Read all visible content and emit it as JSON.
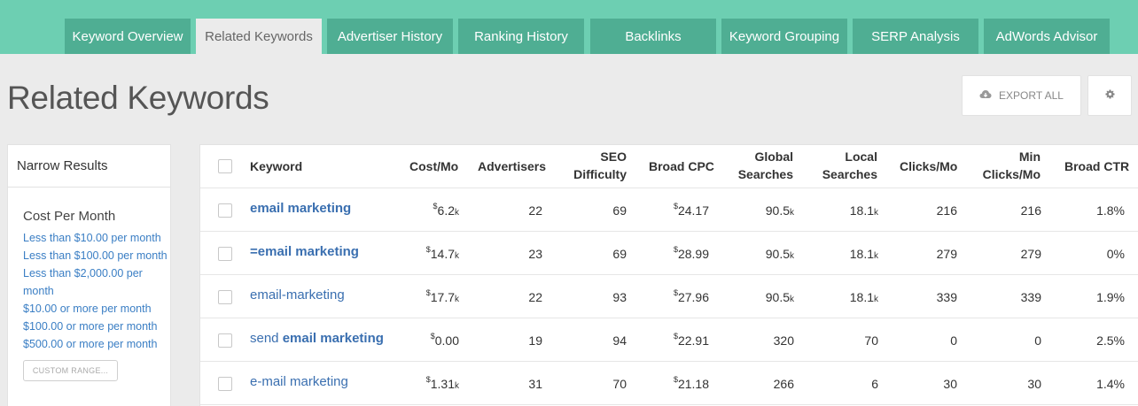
{
  "nav": {
    "tabs": [
      {
        "label": "Keyword Overview",
        "active": false
      },
      {
        "label": "Related Keywords",
        "active": true
      },
      {
        "label": "Advertiser History",
        "active": false
      },
      {
        "label": "Ranking History",
        "active": false
      },
      {
        "label": "Backlinks",
        "active": false
      },
      {
        "label": "Keyword Grouping",
        "active": false
      },
      {
        "label": "SERP Analysis",
        "active": false
      },
      {
        "label": "AdWords Advisor",
        "active": false
      }
    ]
  },
  "page": {
    "title": "Related Keywords",
    "export_label": "EXPORT ALL"
  },
  "sidebar": {
    "heading": "Narrow Results",
    "filter_title": "Cost Per Month",
    "filters": [
      "Less than $10.00 per month",
      "Less than $100.00 per month",
      "Less than $2,000.00 per month",
      "$10.00 or more per month",
      "$100.00 or more per month",
      "$500.00 or more per month"
    ],
    "custom_range_label": "CUSTOM RANGE..."
  },
  "table": {
    "headers": {
      "keyword": "Keyword",
      "cost_mo": "Cost/Mo",
      "advertisers": "Advertisers",
      "seo_1": "SEO",
      "seo_2": "Difficulty",
      "broad_cpc": "Broad CPC",
      "global_1": "Global",
      "global_2": "Searches",
      "local_1": "Local",
      "local_2": "Searches",
      "clicks_mo": "Clicks/Mo",
      "min_1": "Min",
      "min_2": "Clicks/Mo",
      "broad_ctr": "Broad CTR"
    },
    "rows": [
      {
        "pre": "",
        "bold": "email marketing",
        "post": "",
        "cost_cur": "$",
        "cost": "6.2",
        "cost_unit": "k",
        "advertisers": "22",
        "seo": "69",
        "cpc_cur": "$",
        "cpc": "24.17",
        "global": "90.5",
        "global_unit": "k",
        "local": "18.1",
        "local_unit": "k",
        "clicks": "216",
        "min_clicks": "216",
        "ctr": "1.8%"
      },
      {
        "pre": "",
        "bold": "=email marketing",
        "post": "",
        "cost_cur": "$",
        "cost": "14.7",
        "cost_unit": "k",
        "advertisers": "23",
        "seo": "69",
        "cpc_cur": "$",
        "cpc": "28.99",
        "global": "90.5",
        "global_unit": "k",
        "local": "18.1",
        "local_unit": "k",
        "clicks": "279",
        "min_clicks": "279",
        "ctr": "0%"
      },
      {
        "pre": "email-marketing",
        "bold": "",
        "post": "",
        "cost_cur": "$",
        "cost": "17.7",
        "cost_unit": "k",
        "advertisers": "22",
        "seo": "93",
        "cpc_cur": "$",
        "cpc": "27.96",
        "global": "90.5",
        "global_unit": "k",
        "local": "18.1",
        "local_unit": "k",
        "clicks": "339",
        "min_clicks": "339",
        "ctr": "1.9%"
      },
      {
        "pre": "send ",
        "bold": "email marketing",
        "post": "",
        "cost_cur": "$",
        "cost": "0.00",
        "cost_unit": "",
        "advertisers": "19",
        "seo": "94",
        "cpc_cur": "$",
        "cpc": "22.91",
        "global": "320",
        "global_unit": "",
        "local": "70",
        "local_unit": "",
        "clicks": "0",
        "min_clicks": "0",
        "ctr": "2.5%"
      },
      {
        "pre": "e-mail marketing",
        "bold": "",
        "post": "",
        "cost_cur": "$",
        "cost": "1.31",
        "cost_unit": "k",
        "advertisers": "31",
        "seo": "70",
        "cpc_cur": "$",
        "cpc": "21.18",
        "global": "266",
        "global_unit": "",
        "local": "6",
        "local_unit": "",
        "clicks": "30",
        "min_clicks": "30",
        "ctr": "1.4%"
      }
    ]
  }
}
